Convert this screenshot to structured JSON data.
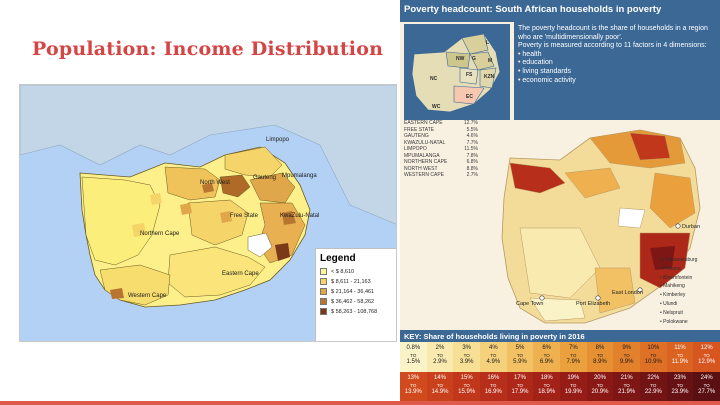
{
  "slide": {
    "title": "Population: Income Distribution"
  },
  "left_map": {
    "regions": {
      "northern_cape": "Northern Cape",
      "western_cape": "Western Cape",
      "eastern_cape": "Eastern Cape",
      "free_state": "Free State",
      "kwazulu_natal": "KwaZulu-Natal",
      "gauteng": "Gauteng",
      "mpumalanga": "Mpumalanga",
      "north_west": "North West",
      "limpopo": "Limpopo"
    },
    "legend": {
      "title": "Legend",
      "items": [
        {
          "label": "< $ 8,610",
          "color": "#fdf5a0"
        },
        {
          "label": "$ 8,611 - 21,163",
          "color": "#f5d46a"
        },
        {
          "label": "$ 21,164 - 36,461",
          "color": "#e0a64a"
        },
        {
          "label": "$ 36,462 - 58,262",
          "color": "#b87532"
        },
        {
          "label": "$ 58,263 - 108,768",
          "color": "#7a3a1a"
        }
      ]
    }
  },
  "infographic": {
    "title": "Poverty headcount: South African households in poverty",
    "explanation": {
      "line1": "The poverty headcount is the share of households in a region who are 'multidimensionally poor'.",
      "line2": "Poverty is measured according to 11 factors in 4 dimensions:",
      "dimensions": [
        "health",
        "education",
        "living standards",
        "economic activity"
      ]
    },
    "inset_labels": {
      "l": "L",
      "nw": "NW",
      "g": "G",
      "m": "M",
      "fs": "FS",
      "kzn": "KZN",
      "nc": "NC",
      "ec": "EC",
      "wc": "WC"
    },
    "provinces": [
      {
        "name": "EASTERN CAPE",
        "value": "12.7%"
      },
      {
        "name": "FREE STATE",
        "value": "5.5%"
      },
      {
        "name": "GAUTENG",
        "value": "4.6%"
      },
      {
        "name": "KWAZULU-NATAL",
        "value": "7.7%"
      },
      {
        "name": "LIMPOPO",
        "value": "11.5%"
      },
      {
        "name": "MPUMALANGA",
        "value": "7.8%"
      },
      {
        "name": "NORTHERN CAPE",
        "value": "6.8%"
      },
      {
        "name": "NORTH WEST",
        "value": "8.8%"
      },
      {
        "name": "WESTERN CAPE",
        "value": "2.7%"
      }
    ],
    "cities": {
      "durban": "Durban",
      "cape_town": "Cape Town",
      "port_elizabeth": "Port Elizabeth",
      "east_london": "East London"
    },
    "city_key": [
      "Johannesburg",
      "Pretoria",
      "Bloemfontein",
      "Mahikeng",
      "Kimberley",
      "Ulundi",
      "Nelspruit",
      "Polokwane"
    ],
    "key": {
      "title": "KEY: Share of households living in poverty in 2016",
      "row1": [
        {
          "from": "0.8%",
          "to": "1.5%",
          "color": "#fbf3c8"
        },
        {
          "from": "2%",
          "to": "2.9%",
          "color": "#f9eab0"
        },
        {
          "from": "3%",
          "to": "3.9%",
          "color": "#f7df96"
        },
        {
          "from": "4%",
          "to": "4.9%",
          "color": "#f5d17c"
        },
        {
          "from": "5%",
          "to": "5.9%",
          "color": "#f2c164"
        },
        {
          "from": "6%",
          "to": "6.9%",
          "color": "#efb04f"
        },
        {
          "from": "7%",
          "to": "7.9%",
          "color": "#eba03e"
        },
        {
          "from": "8%",
          "to": "8.9%",
          "color": "#e79033"
        },
        {
          "from": "9%",
          "to": "9.9%",
          "color": "#e3802b"
        },
        {
          "from": "10%",
          "to": "10.9%",
          "color": "#df7126"
        },
        {
          "from": "11%",
          "to": "11.9%",
          "color": "#db6322"
        },
        {
          "from": "12%",
          "to": "12.9%",
          "color": "#d7561f"
        }
      ],
      "row2": [
        {
          "from": "13%",
          "to": "13.9%",
          "color": "#d04a1d"
        },
        {
          "from": "14%",
          "to": "14.9%",
          "color": "#c8401c"
        },
        {
          "from": "15%",
          "to": "15.9%",
          "color": "#c0371b"
        },
        {
          "from": "16%",
          "to": "16.9%",
          "color": "#b72f1a"
        },
        {
          "from": "17%",
          "to": "17.9%",
          "color": "#ad2819"
        },
        {
          "from": "18%",
          "to": "18.9%",
          "color": "#a22218"
        },
        {
          "from": "19%",
          "to": "19.9%",
          "color": "#961d17"
        },
        {
          "from": "20%",
          "to": "20.9%",
          "color": "#8a1916"
        },
        {
          "from": "21%",
          "to": "21.9%",
          "color": "#7e1615"
        },
        {
          "from": "22%",
          "to": "22.9%",
          "color": "#721314"
        },
        {
          "from": "23%",
          "to": "23.9%",
          "color": "#661113"
        },
        {
          "from": "24%",
          "to": "27.7%",
          "color": "#5a0f12"
        }
      ]
    }
  }
}
